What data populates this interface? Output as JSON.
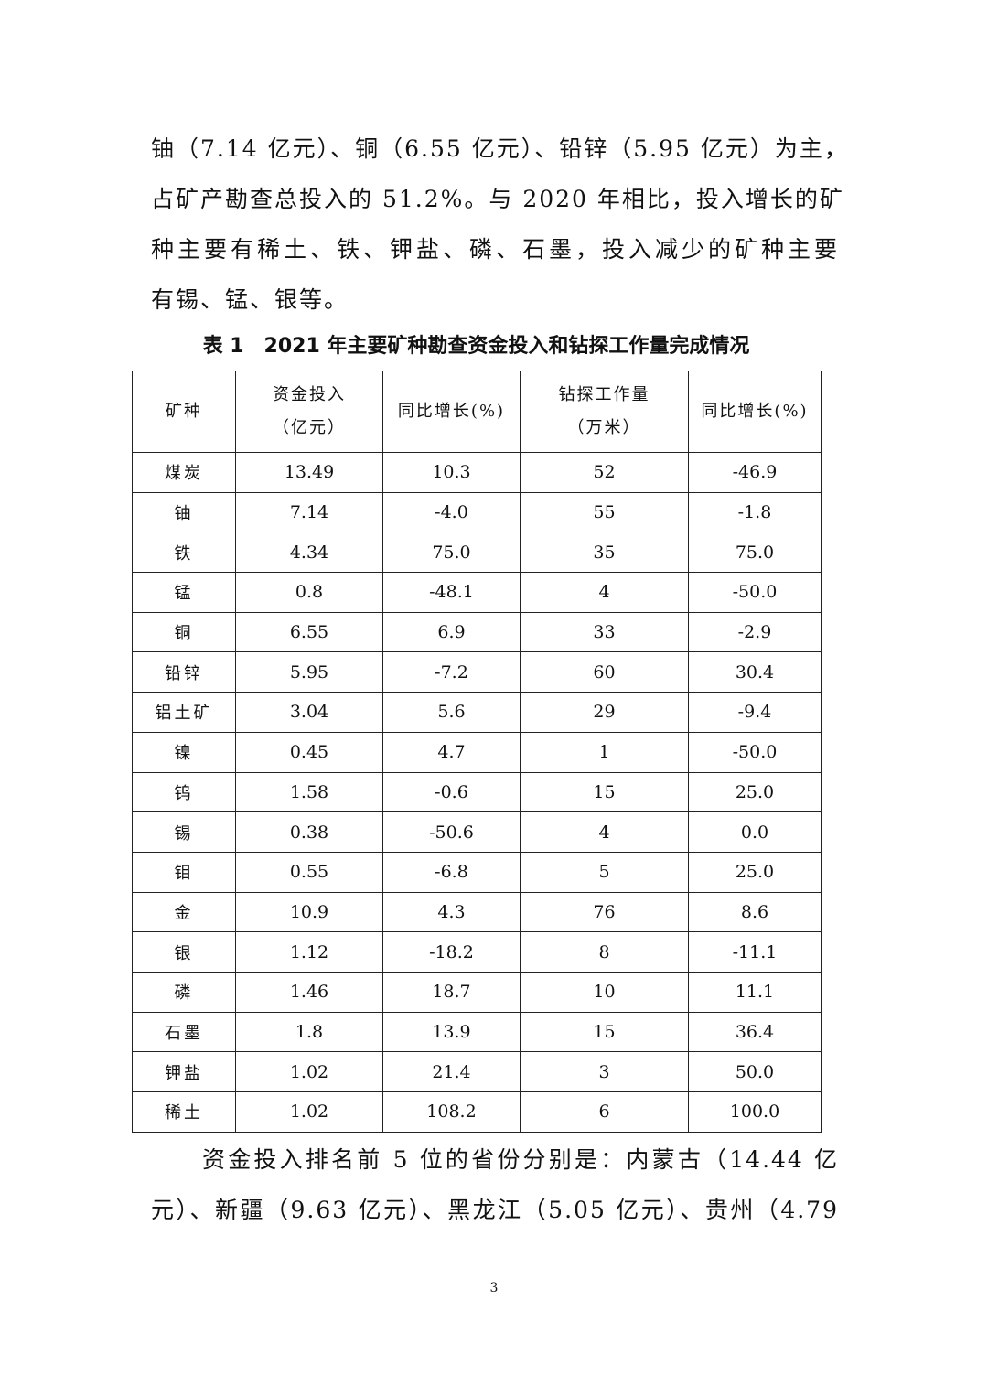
{
  "paragraph1": [
    "铀（7.14 亿元）、铜（6.55 亿元）、铅锌（5.95 亿元）为主，",
    "占矿产勘查总投入的 51.2%。与 2020 年相比，投入增长的矿",
    "种主要有稀土、铁、钾盐、磷、石墨，投入减少的矿种主要",
    "有锡、锰、银等。"
  ],
  "table": {
    "caption": "表 1　2021 年主要矿种勘查资金投入和钻探工作量完成情况",
    "headers": [
      {
        "line1": "矿种",
        "line2": ""
      },
      {
        "line1": "资金投入",
        "line2": "（亿元）"
      },
      {
        "line1": "同比增长(%)",
        "line2": ""
      },
      {
        "line1": "钻探工作量",
        "line2": "（万米）"
      },
      {
        "line1": "同比增长(%)",
        "line2": ""
      }
    ],
    "rows": [
      [
        "煤炭",
        "13.49",
        "10.3",
        "52",
        "-46.9"
      ],
      [
        "铀",
        "7.14",
        "-4.0",
        "55",
        "-1.8"
      ],
      [
        "铁",
        "4.34",
        "75.0",
        "35",
        "75.0"
      ],
      [
        "锰",
        "0.8",
        "-48.1",
        "4",
        "-50.0"
      ],
      [
        "铜",
        "6.55",
        "6.9",
        "33",
        "-2.9"
      ],
      [
        "铅锌",
        "5.95",
        "-7.2",
        "60",
        "30.4"
      ],
      [
        "铝土矿",
        "3.04",
        "5.6",
        "29",
        "-9.4"
      ],
      [
        "镍",
        "0.45",
        "4.7",
        "1",
        "-50.0"
      ],
      [
        "钨",
        "1.58",
        "-0.6",
        "15",
        "25.0"
      ],
      [
        "锡",
        "0.38",
        "-50.6",
        "4",
        "0.0"
      ],
      [
        "钼",
        "0.55",
        "-6.8",
        "5",
        "25.0"
      ],
      [
        "金",
        "10.9",
        "4.3",
        "76",
        "8.6"
      ],
      [
        "银",
        "1.12",
        "-18.2",
        "8",
        "-11.1"
      ],
      [
        "磷",
        "1.46",
        "18.7",
        "10",
        "11.1"
      ],
      [
        "石墨",
        "1.8",
        "13.9",
        "15",
        "36.4"
      ],
      [
        "钾盐",
        "1.02",
        "21.4",
        "3",
        "50.0"
      ],
      [
        "稀土",
        "1.02",
        "108.2",
        "6",
        "100.0"
      ]
    ]
  },
  "paragraph2": [
    "资金投入排名前 5 位的省份分别是：内蒙古（14.44 亿",
    "元）、新疆（9.63 亿元）、黑龙江（5.05 亿元）、贵州（4.79"
  ],
  "page_number": "3"
}
